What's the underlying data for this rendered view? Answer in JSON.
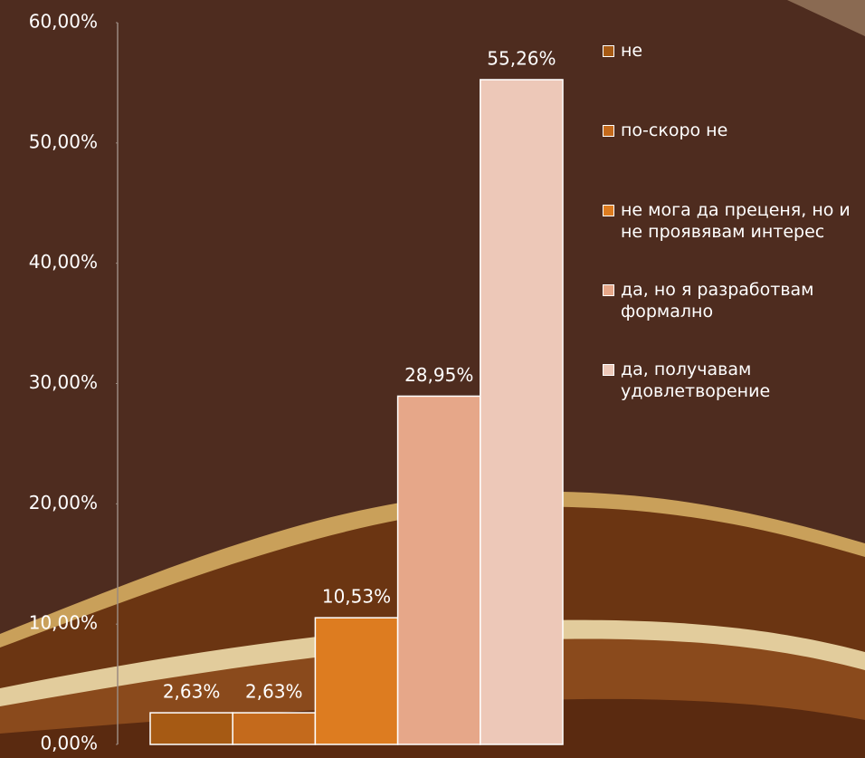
{
  "chart_data": {
    "type": "bar",
    "categories": [
      null
    ],
    "series": [
      {
        "name": "не",
        "color": "#a65a14",
        "values": [
          2.63
        ],
        "value_labels": [
          "2,63%"
        ]
      },
      {
        "name": "по-скоро не",
        "color": "#c46a1c",
        "values": [
          2.63
        ],
        "value_labels": [
          "2,63%"
        ]
      },
      {
        "name": "не мога да преценя, но и не проявявам интерес",
        "color": "#dd7c20",
        "values": [
          10.53
        ],
        "value_labels": [
          "10,53%"
        ]
      },
      {
        "name": "да, но я разработвам формално",
        "color": "#e6a789",
        "values": [
          28.95
        ],
        "value_labels": [
          "28,95%"
        ]
      },
      {
        "name": "да, получавам удовлетворение",
        "color": "#edc8b8",
        "values": [
          55.26
        ],
        "value_labels": [
          "55,26%"
        ]
      }
    ],
    "ylim": [
      0,
      60
    ],
    "yticks": [
      {
        "value": 0,
        "label": "0,00%"
      },
      {
        "value": 10,
        "label": "10,00%"
      },
      {
        "value": 20,
        "label": "20,00%"
      },
      {
        "value": 30,
        "label": "30,00%"
      },
      {
        "value": 40,
        "label": "40,00%"
      },
      {
        "value": 50,
        "label": "50,00%"
      },
      {
        "value": 60,
        "label": "60,00%"
      }
    ],
    "legend": "right"
  }
}
